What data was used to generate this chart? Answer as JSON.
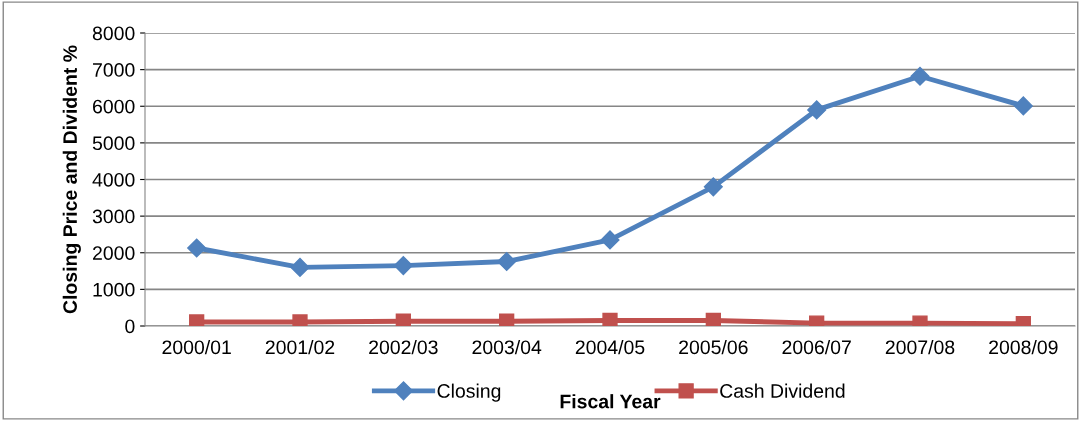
{
  "chart_data": {
    "type": "line",
    "xlabel": "Fiscal Year",
    "ylabel": "Closing Price and Divident %",
    "categories": [
      "2000/01",
      "2001/02",
      "2002/03",
      "2003/04",
      "2004/05",
      "2005/06",
      "2006/07",
      "2007/08",
      "2008/09"
    ],
    "series": [
      {
        "name": "Closing",
        "color": "#4f81bd",
        "marker": "diamond",
        "values": [
          2130,
          1600,
          1650,
          1760,
          2350,
          3800,
          5900,
          6820,
          6010
        ]
      },
      {
        "name": "Cash Dividend",
        "color": "#c0504d",
        "marker": "square",
        "values": [
          110,
          110,
          130,
          130,
          150,
          150,
          80,
          80,
          65
        ]
      }
    ],
    "ylim": [
      0,
      8000
    ],
    "yticks": [
      0,
      1000,
      2000,
      3000,
      4000,
      5000,
      6000,
      7000,
      8000
    ],
    "grid": "y",
    "legend": "bottom",
    "line_style": "solid"
  }
}
